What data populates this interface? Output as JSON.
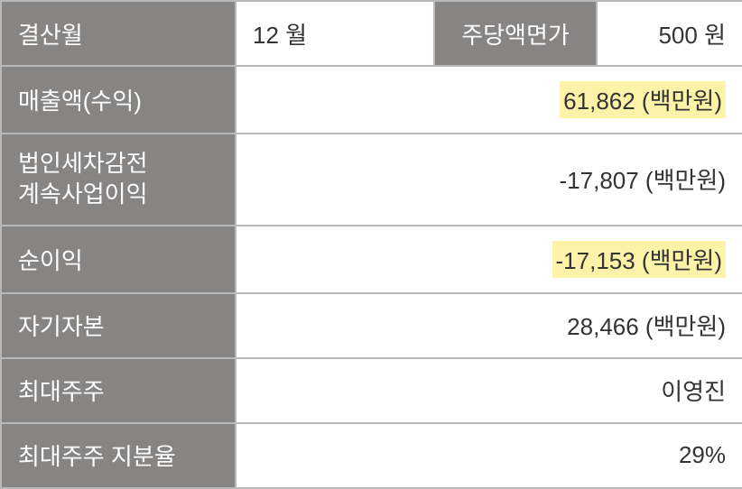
{
  "table": {
    "border_color": "#b8b8b8",
    "label_bg": "#878584",
    "label_fg": "#ffffff",
    "value_bg": "#ffffff",
    "value_fg": "#333333",
    "highlight_bg": "#fdf3a8",
    "font_size_pt": 26,
    "rows": {
      "settlement_month": {
        "label": "결산월",
        "month_value": "12 월",
        "par_label": "주당액면가",
        "par_value": "500 원"
      },
      "revenue": {
        "label": "매출액(수익)",
        "value": "61,862 (백만원)",
        "highlighted": true
      },
      "pretax_income": {
        "label_line1": "법인세차감전",
        "label_line2": "계속사업이익",
        "value": "-17,807 (백만원)",
        "highlighted": false
      },
      "net_income": {
        "label": "순이익",
        "value": "-17,153 (백만원)",
        "highlighted": true
      },
      "equity": {
        "label": "자기자본",
        "value": "28,466 (백만원)",
        "highlighted": false
      },
      "major_shareholder": {
        "label": "최대주주",
        "value": "이영진",
        "highlighted": false
      },
      "major_share_ratio": {
        "label": "최대주주 지분율",
        "value": "29%",
        "highlighted": false
      }
    }
  }
}
